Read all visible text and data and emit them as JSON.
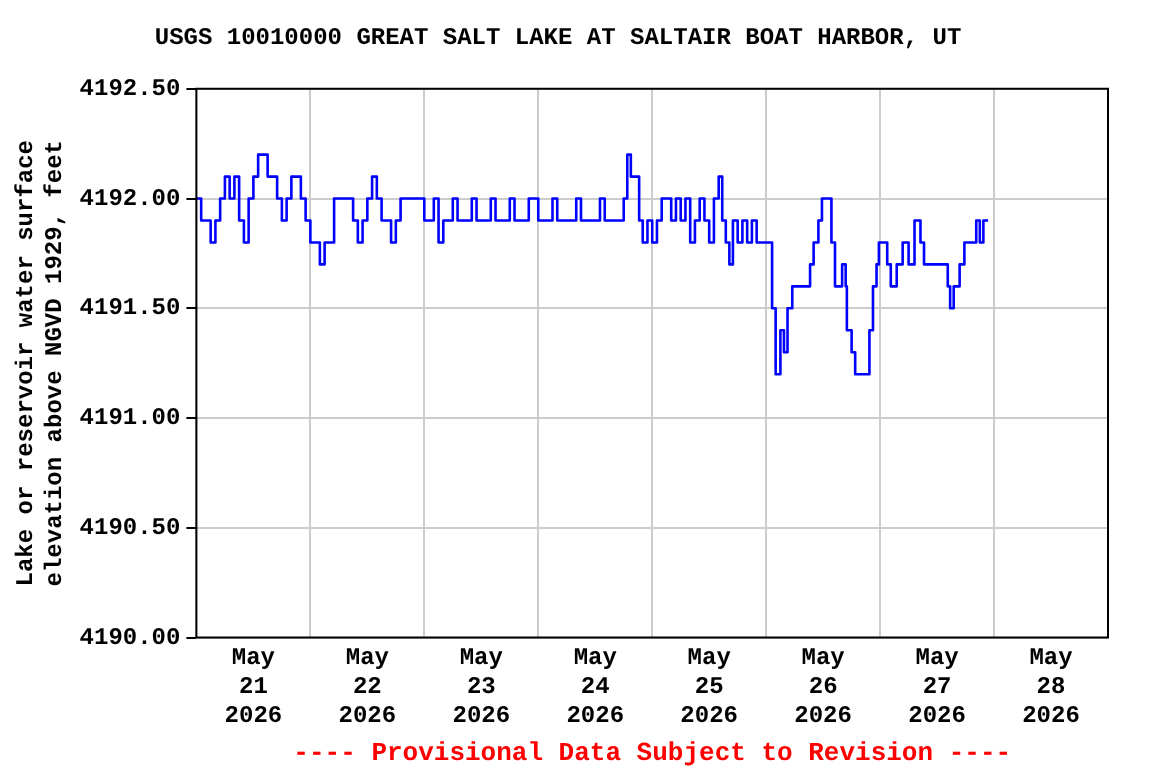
{
  "chart_data": {
    "type": "step",
    "title": "USGS 10010000 GREAT SALT LAKE AT SALTAIR BOAT HARBOR, UT",
    "ylabel": "Lake or reservoir water surface\nelevation above NGVD 1929, feet",
    "annotations": [
      "---- Provisional Data Subject to Revision ----"
    ],
    "xlim": [
      "2026-05-21T00:00",
      "2026-05-29T00:00"
    ],
    "xticks": [
      {
        "value": "2026-05-21T00:00",
        "label": null
      },
      {
        "value": "2026-05-21T12:00",
        "label": "May 21 2026"
      },
      {
        "value": "2026-05-22T00:00",
        "label": null
      },
      {
        "value": "2026-05-22T12:00",
        "label": "May 22 2026"
      },
      {
        "value": "2026-05-23T00:00",
        "label": null
      },
      {
        "value": "2026-05-23T12:00",
        "label": "May 23 2026"
      },
      {
        "value": "2026-05-24T00:00",
        "label": null
      },
      {
        "value": "2026-05-24T12:00",
        "label": "May 24 2026"
      },
      {
        "value": "2026-05-25T00:00",
        "label": null
      },
      {
        "value": "2026-05-25T12:00",
        "label": "May 25 2026"
      },
      {
        "value": "2026-05-26T00:00",
        "label": null
      },
      {
        "value": "2026-05-26T12:00",
        "label": "May 26 2026"
      },
      {
        "value": "2026-05-27T00:00",
        "label": null
      },
      {
        "value": "2026-05-27T12:00",
        "label": "May 27 2026"
      },
      {
        "value": "2026-05-28T00:00",
        "label": null
      },
      {
        "value": "2026-05-28T12:00",
        "label": "May 28 2026"
      },
      {
        "value": "2026-05-29T00:00",
        "label": null
      }
    ],
    "ylim": [
      4190.0,
      4192.5
    ],
    "yticks": [
      {
        "value": 4190.0,
        "label": "4190.00"
      },
      {
        "value": 4190.5,
        "label": "4190.50"
      },
      {
        "value": 4191.0,
        "label": "4191.00"
      },
      {
        "value": 4191.5,
        "label": "4191.50"
      },
      {
        "value": 4192.0,
        "label": "4192.00"
      },
      {
        "value": 4192.5,
        "label": "4192.50"
      }
    ],
    "grid": true,
    "legend": false,
    "marker": "none",
    "line_style": "solid",
    "x": [
      "2026-05-21T00:00",
      "2026-05-21T01:00",
      "2026-05-21T03:00",
      "2026-05-21T04:00",
      "2026-05-21T05:00",
      "2026-05-21T06:00",
      "2026-05-21T07:00",
      "2026-05-21T08:00",
      "2026-05-21T09:00",
      "2026-05-21T10:00",
      "2026-05-21T11:00",
      "2026-05-21T12:00",
      "2026-05-21T13:00",
      "2026-05-21T15:00",
      "2026-05-21T17:00",
      "2026-05-21T18:00",
      "2026-05-21T19:00",
      "2026-05-21T20:00",
      "2026-05-21T22:00",
      "2026-05-21T23:00",
      "2026-05-22T00:00",
      "2026-05-22T02:00",
      "2026-05-22T03:00",
      "2026-05-22T05:00",
      "2026-05-22T09:00",
      "2026-05-22T10:00",
      "2026-05-22T11:00",
      "2026-05-22T12:00",
      "2026-05-22T13:00",
      "2026-05-22T14:00",
      "2026-05-22T15:00",
      "2026-05-22T17:00",
      "2026-05-22T18:00",
      "2026-05-22T19:00",
      "2026-05-23T00:00",
      "2026-05-23T02:00",
      "2026-05-23T03:00",
      "2026-05-23T04:00",
      "2026-05-23T06:00",
      "2026-05-23T07:00",
      "2026-05-23T10:00",
      "2026-05-23T11:00",
      "2026-05-23T14:00",
      "2026-05-23T15:00",
      "2026-05-23T18:00",
      "2026-05-23T19:00",
      "2026-05-23T22:00",
      "2026-05-24T00:00",
      "2026-05-24T03:00",
      "2026-05-24T04:00",
      "2026-05-24T08:00",
      "2026-05-24T09:00",
      "2026-05-24T13:00",
      "2026-05-24T14:00",
      "2026-05-24T18:00",
      "2026-05-24T18:45",
      "2026-05-24T19:30",
      "2026-05-24T21:15",
      "2026-05-24T22:00",
      "2026-05-24T23:00",
      "2026-05-25T00:00",
      "2026-05-25T01:00",
      "2026-05-25T02:00",
      "2026-05-25T04:00",
      "2026-05-25T05:00",
      "2026-05-25T06:00",
      "2026-05-25T07:00",
      "2026-05-25T08:00",
      "2026-05-25T09:00",
      "2026-05-25T10:00",
      "2026-05-25T11:00",
      "2026-05-25T12:00",
      "2026-05-25T13:00",
      "2026-05-25T14:00",
      "2026-05-25T14:45",
      "2026-05-25T15:30",
      "2026-05-25T16:15",
      "2026-05-25T17:00",
      "2026-05-25T18:00",
      "2026-05-25T19:00",
      "2026-05-25T20:00",
      "2026-05-25T21:00",
      "2026-05-25T22:00",
      "2026-05-26T01:15",
      "2026-05-26T02:00",
      "2026-05-26T03:00",
      "2026-05-26T03:45",
      "2026-05-26T04:30",
      "2026-05-26T05:30",
      "2026-05-26T09:15",
      "2026-05-26T10:00",
      "2026-05-26T11:00",
      "2026-05-26T11:45",
      "2026-05-26T13:45",
      "2026-05-26T14:30",
      "2026-05-26T16:00",
      "2026-05-26T16:45",
      "2026-05-26T17:00",
      "2026-05-26T18:00",
      "2026-05-26T18:45",
      "2026-05-26T21:45",
      "2026-05-26T22:30",
      "2026-05-26T23:15",
      "2026-05-26T23:45",
      "2026-05-27T01:30",
      "2026-05-27T02:15",
      "2026-05-27T03:30",
      "2026-05-27T04:45",
      "2026-05-27T06:00",
      "2026-05-27T07:15",
      "2026-05-27T08:30",
      "2026-05-27T09:15",
      "2026-05-27T14:15",
      "2026-05-27T14:45",
      "2026-05-27T15:30",
      "2026-05-27T16:45",
      "2026-05-27T17:45",
      "2026-05-27T20:15",
      "2026-05-27T21:00",
      "2026-05-27T21:45",
      "2026-05-27T22:45"
    ],
    "values": [
      4192.0,
      4191.9,
      4191.8,
      4191.9,
      4192.0,
      4192.1,
      4192.0,
      4192.1,
      4191.9,
      4191.8,
      4192.0,
      4192.1,
      4192.2,
      4192.1,
      4192.0,
      4191.9,
      4192.0,
      4192.1,
      4192.0,
      4191.9,
      4191.8,
      4191.7,
      4191.8,
      4192.0,
      4191.9,
      4191.8,
      4191.9,
      4192.0,
      4192.1,
      4192.0,
      4191.9,
      4191.8,
      4191.9,
      4192.0,
      4191.9,
      4192.0,
      4191.8,
      4191.9,
      4192.0,
      4191.9,
      4192.0,
      4191.9,
      4192.0,
      4191.9,
      4192.0,
      4191.9,
      4192.0,
      4191.9,
      4192.0,
      4191.9,
      4192.0,
      4191.9,
      4192.0,
      4191.9,
      4192.0,
      4192.2,
      4192.1,
      4191.9,
      4191.8,
      4191.9,
      4191.8,
      4191.9,
      4192.0,
      4191.9,
      4192.0,
      4191.9,
      4192.0,
      4191.8,
      4191.9,
      4192.0,
      4191.9,
      4191.8,
      4192.0,
      4192.1,
      4191.9,
      4191.8,
      4191.7,
      4191.9,
      4191.8,
      4191.9,
      4191.8,
      4191.9,
      4191.8,
      4191.5,
      4191.2,
      4191.4,
      4191.3,
      4191.5,
      4191.6,
      4191.7,
      4191.8,
      4191.9,
      4192.0,
      4191.8,
      4191.6,
      4191.7,
      4191.6,
      4191.4,
      4191.3,
      4191.2,
      4191.4,
      4191.6,
      4191.7,
      4191.8,
      4191.7,
      4191.6,
      4191.7,
      4191.8,
      4191.7,
      4191.9,
      4191.8,
      4191.7,
      4191.6,
      4191.5,
      4191.6,
      4191.7,
      4191.8,
      4191.9,
      4191.8,
      4191.9,
      4191.9
    ],
    "color": "#0000ff"
  }
}
